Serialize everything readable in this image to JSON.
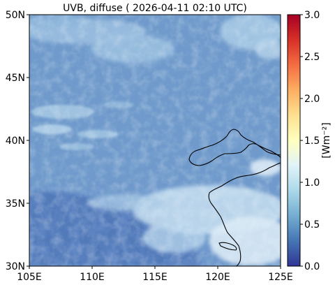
{
  "map": {
    "title": "UVB, diffuse ( 2026-04-11 02:10 UTC)",
    "projection": "plate carree",
    "extent": {
      "lon_min": 105,
      "lon_max": 125,
      "lat_min": 30,
      "lat_max": 50
    },
    "lon_ticks": [
      "105E",
      "110E",
      "115E",
      "120E",
      "125E"
    ],
    "lat_ticks": [
      "50N",
      "45N",
      "40N",
      "35N",
      "30N"
    ],
    "basemap": "coastlines",
    "field": "UVB diffuse irradiance",
    "dominant_value": 0.8,
    "cloud_regions_high_values": [
      "north (45N-50N)",
      "central strip near 40N-42N",
      "south-east (30N-36N, 113E-125E)"
    ],
    "low_value_region": "south-west (30N-35N, 105E-115E)"
  },
  "colorbar": {
    "label": "[Wm$^{-2}$]",
    "label_display": "[Wm⁻²]",
    "colormap": "RdYlBu_r",
    "ticks": [
      "0.0",
      "0.5",
      "1.0",
      "1.5",
      "2.0",
      "2.5",
      "3.0"
    ],
    "min": 0.0,
    "max": 3.0
  }
}
